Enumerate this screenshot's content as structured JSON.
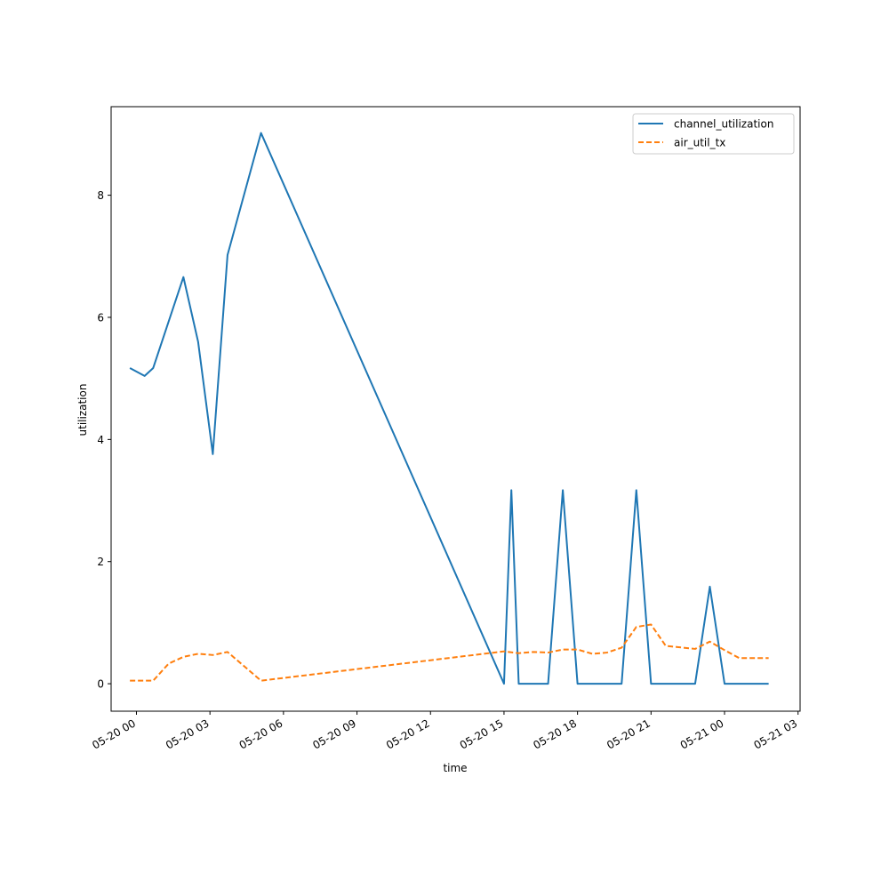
{
  "chart_data": {
    "type": "line",
    "xlabel": "time",
    "ylabel": "utilization",
    "x_type": "datetime",
    "xlim": [
      "2024-05-19T22:58",
      "2024-05-21T03:05"
    ],
    "ylim": [
      -0.45,
      9.45
    ],
    "x_ticks": [
      {
        "t": "2024-05-20T00:00",
        "label": "05-20 00"
      },
      {
        "t": "2024-05-20T03:00",
        "label": "05-20 03"
      },
      {
        "t": "2024-05-20T06:00",
        "label": "05-20 06"
      },
      {
        "t": "2024-05-20T09:00",
        "label": "05-20 09"
      },
      {
        "t": "2024-05-20T12:00",
        "label": "05-20 12"
      },
      {
        "t": "2024-05-20T15:00",
        "label": "05-20 15"
      },
      {
        "t": "2024-05-20T18:00",
        "label": "05-20 18"
      },
      {
        "t": "2024-05-20T21:00",
        "label": "05-20 21"
      },
      {
        "t": "2024-05-21T00:00",
        "label": "05-21 00"
      },
      {
        "t": "2024-05-21T03:00",
        "label": "05-21 03"
      }
    ],
    "y_ticks": [
      {
        "v": 0,
        "label": "0"
      },
      {
        "v": 2,
        "label": "2"
      },
      {
        "v": 4,
        "label": "4"
      },
      {
        "v": 6,
        "label": "6"
      },
      {
        "v": 8,
        "label": "8"
      }
    ],
    "grid": false,
    "legend_position": "top-right",
    "series": [
      {
        "name": "channel_utilization",
        "color": "#1f77b4",
        "style": "solid",
        "points": [
          [
            "2024-05-19T23:44",
            5.17
          ],
          [
            "2024-05-20T00:20",
            5.04
          ],
          [
            "2024-05-20T00:41",
            5.17
          ],
          [
            "2024-05-20T01:55",
            6.66
          ],
          [
            "2024-05-20T02:31",
            5.6
          ],
          [
            "2024-05-20T03:07",
            3.76
          ],
          [
            "2024-05-20T03:43",
            7.02
          ],
          [
            "2024-05-20T05:05",
            9.02
          ],
          [
            "2024-05-20T15:00",
            0.0
          ],
          [
            "2024-05-20T15:18",
            3.17
          ],
          [
            "2024-05-20T15:36",
            0.0
          ],
          [
            "2024-05-20T16:48",
            0.0
          ],
          [
            "2024-05-20T17:24",
            3.17
          ],
          [
            "2024-05-20T18:00",
            0.0
          ],
          [
            "2024-05-20T19:48",
            0.0
          ],
          [
            "2024-05-20T20:24",
            3.17
          ],
          [
            "2024-05-20T21:00",
            0.0
          ],
          [
            "2024-05-20T22:48",
            0.0
          ],
          [
            "2024-05-20T23:24",
            1.59
          ],
          [
            "2024-05-21T00:00",
            0.0
          ],
          [
            "2024-05-21T01:48",
            0.0
          ]
        ]
      },
      {
        "name": "air_util_tx",
        "color": "#ff7f0e",
        "style": "dashed",
        "points": [
          [
            "2024-05-19T23:44",
            0.05
          ],
          [
            "2024-05-20T00:20",
            0.05
          ],
          [
            "2024-05-20T00:41",
            0.05
          ],
          [
            "2024-05-20T01:19",
            0.33
          ],
          [
            "2024-05-20T01:55",
            0.44
          ],
          [
            "2024-05-20T02:31",
            0.49
          ],
          [
            "2024-05-20T03:07",
            0.47
          ],
          [
            "2024-05-20T03:43",
            0.52
          ],
          [
            "2024-05-20T05:05",
            0.05
          ],
          [
            "2024-05-20T15:00",
            0.53
          ],
          [
            "2024-05-20T15:36",
            0.5
          ],
          [
            "2024-05-20T16:12",
            0.52
          ],
          [
            "2024-05-20T16:48",
            0.51
          ],
          [
            "2024-05-20T17:24",
            0.56
          ],
          [
            "2024-05-20T18:00",
            0.56
          ],
          [
            "2024-05-20T18:36",
            0.49
          ],
          [
            "2024-05-20T19:12",
            0.51
          ],
          [
            "2024-05-20T19:48",
            0.59
          ],
          [
            "2024-05-20T20:24",
            0.93
          ],
          [
            "2024-05-20T21:00",
            0.97
          ],
          [
            "2024-05-20T21:36",
            0.62
          ],
          [
            "2024-05-20T22:48",
            0.57
          ],
          [
            "2024-05-20T23:24",
            0.69
          ],
          [
            "2024-05-21T00:00",
            0.55
          ],
          [
            "2024-05-21T00:36",
            0.42
          ],
          [
            "2024-05-21T01:48",
            0.42
          ]
        ]
      }
    ]
  }
}
